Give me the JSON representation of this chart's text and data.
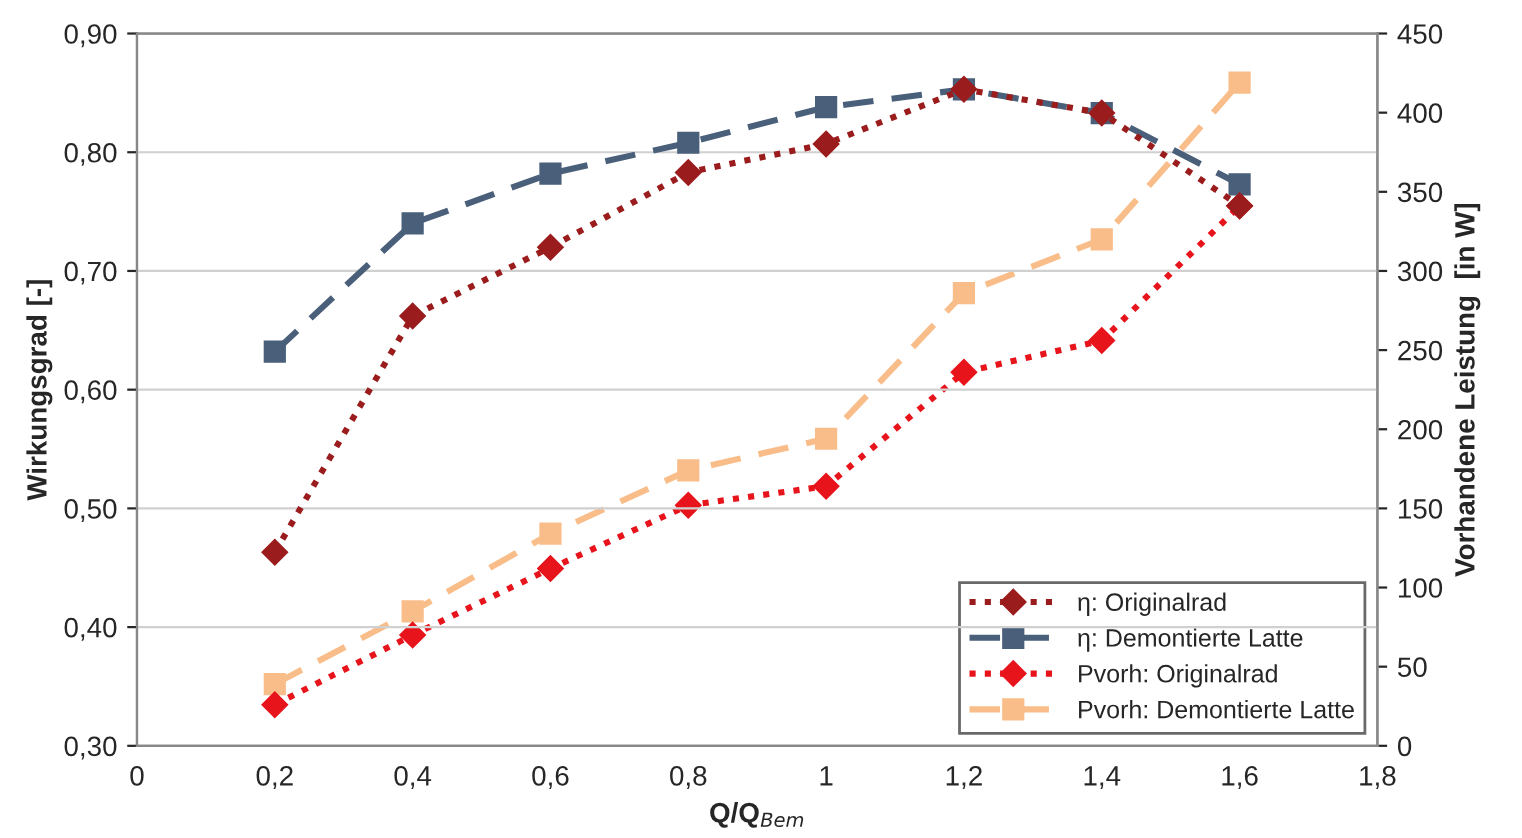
{
  "chart_data": {
    "type": "line",
    "xlabel": "Q/Q$_{Bem}$",
    "ylabel": "Wirkungsgrad [-]",
    "y2label": "Vorhandene Leistung  [in W]",
    "x": [
      0.2,
      0.4,
      0.6,
      0.8,
      1.0,
      1.2,
      1.4,
      1.6
    ],
    "series": [
      {
        "name": "η: Originalrad",
        "color": "#9b1c1c",
        "marker": "diamond",
        "line_style": "dotted",
        "values": [
          0.463,
          0.662,
          0.72,
          0.783,
          0.807,
          0.853,
          0.833,
          0.755
        ]
      },
      {
        "name": "η: Demontierte Latte",
        "color": "#4a5f7a",
        "marker": "square",
        "line_style": "dashed",
        "values": [
          0.632,
          0.74,
          0.782,
          0.808,
          0.838,
          0.853,
          0.833,
          0.773
        ]
      },
      {
        "name": "Pvorh: Originalrad",
        "color": "#e8141c",
        "marker": "diamond",
        "line_style": "dotted",
        "axis": "y2",
        "values": [
          26,
          70,
          112,
          152,
          164,
          236,
          256,
          341
        ]
      },
      {
        "name": "Pvorh: Demontierte Latte",
        "color": "#f9bd8a",
        "marker": "square",
        "line_style": "dashed",
        "axis": "y2",
        "values": [
          39,
          85,
          134,
          174,
          194,
          286,
          320,
          419
        ]
      }
    ],
    "xlim": [
      0,
      1.8
    ],
    "xticks": [
      0,
      {
        "value": 0.2,
        "label": "0,2"
      },
      {
        "value": 0.4,
        "label": "0,4"
      },
      {
        "value": 0.6,
        "label": "0,6"
      },
      {
        "value": 0.8,
        "label": "0,8"
      },
      1,
      {
        "value": 1.2,
        "label": "1,2"
      },
      {
        "value": 1.4,
        "label": "1,4"
      },
      {
        "value": 1.6,
        "label": "1,6"
      },
      {
        "value": 1.8,
        "label": "1,8"
      }
    ],
    "ylim": [
      0.3,
      0.9
    ],
    "yticks": [
      {
        "value": 0.3,
        "label": "0,30"
      },
      {
        "value": 0.4,
        "label": "0,40"
      },
      {
        "value": 0.5,
        "label": "0,50"
      },
      {
        "value": 0.6,
        "label": "0,60"
      },
      {
        "value": 0.7,
        "label": "0,70"
      },
      {
        "value": 0.8,
        "label": "0,80"
      },
      {
        "value": 0.9,
        "label": "0,90"
      }
    ],
    "y2lim": [
      0,
      450
    ],
    "y2ticks": [
      0,
      50,
      100,
      150,
      200,
      250,
      300,
      350,
      400,
      450
    ],
    "grid": "y",
    "legend": "bottom right"
  }
}
